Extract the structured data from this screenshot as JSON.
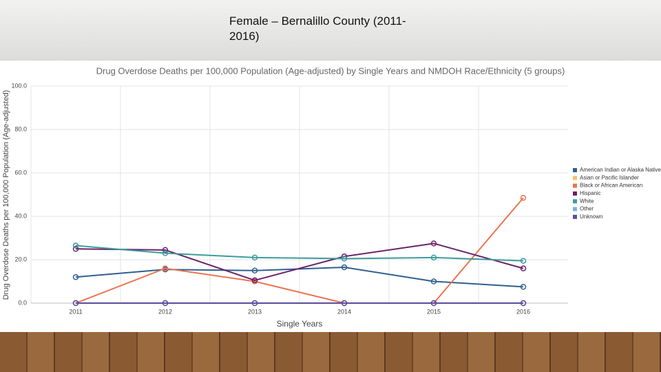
{
  "slide": {
    "title": "Female – Bernalillo County (2011-2016)"
  },
  "chart_data": {
    "type": "line",
    "title": "Drug Overdose Deaths per 100,000 Population (Age-adjusted) by Single Years and NMDOH Race/Ethnicity (5 groups)",
    "x_label": "Single Years",
    "y_label": "Drug Overdose Deaths per 100,000 Population (Age-adjusted)",
    "categories": [
      "2011",
      "2012",
      "2013",
      "2014",
      "2015",
      "2016"
    ],
    "series": [
      {
        "name": "American Indian or Alaska Native",
        "color": "#2f5f8f",
        "values": [
          12,
          15.5,
          15,
          16.5,
          10,
          7.5
        ]
      },
      {
        "name": "Asian or Pacific Islander",
        "color": "#f3c26b",
        "values": [
          0,
          0,
          0,
          0,
          0,
          0
        ]
      },
      {
        "name": "Black or African American",
        "color": "#ec7350",
        "values": [
          0,
          16,
          10,
          0,
          0,
          48.5
        ]
      },
      {
        "name": "Hispanic",
        "color": "#6a206b",
        "values": [
          25,
          24.5,
          10.5,
          21.5,
          27.5,
          16
        ]
      },
      {
        "name": "White",
        "color": "#3b9c9c",
        "values": [
          26.5,
          23,
          21,
          20.5,
          21,
          19.5
        ]
      },
      {
        "name": "Other",
        "color": "#7fb2d6",
        "values": [
          0,
          0,
          0,
          0,
          0,
          0
        ]
      },
      {
        "name": "Unknown",
        "color": "#5b4a9e",
        "values": [
          0,
          0,
          0,
          0,
          0,
          0
        ]
      }
    ],
    "ylim": [
      0,
      100
    ],
    "yticks": [
      {
        "value": 0,
        "label": "0.0"
      },
      {
        "value": 20,
        "label": "20.0"
      },
      {
        "value": 40,
        "label": "40.0"
      },
      {
        "value": 60,
        "label": "60.0"
      },
      {
        "value": 80,
        "label": "80.0"
      },
      {
        "value": 100,
        "label": "100.0"
      }
    ],
    "grid": true,
    "legend": "right"
  }
}
